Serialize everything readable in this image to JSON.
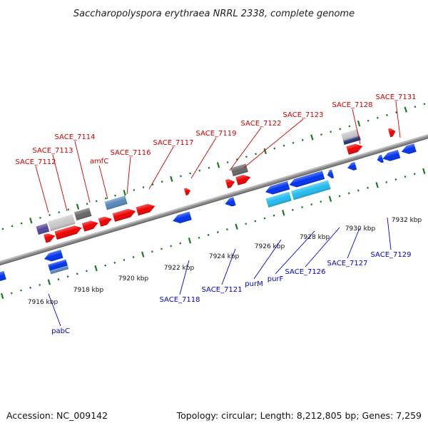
{
  "title": "Saccharopolyspora erythraea NRRL 2338, complete genome",
  "footer": {
    "accession": "Accession: NC_009142",
    "summary": "Topology: circular; Length: 8,212,805 bp; Genes: 7,259"
  },
  "colors": {
    "backbone": "#8c8c8c",
    "tick": "#1e7a1e",
    "forward_label": "#cc0000",
    "reverse_label": "#0000cc",
    "red": "#ee0000",
    "blue": "#0033ee",
    "cyan": "#22bbee",
    "steel": "#5588bb",
    "grey": "#666666",
    "lightgrey": "#c8c8c8",
    "navy": "#223377",
    "purple": "#554499"
  },
  "scale_labels": [
    "7916 kbp",
    "7918 kbp",
    "7920 kbp",
    "7922 kbp",
    "7924 kbp",
    "7926 kbp",
    "7928 kbp",
    "7930 kbp",
    "7932 kbp"
  ],
  "forward_labels": [
    "SACE_7112",
    "SACE_7113",
    "SACE_7114",
    "amfC",
    "SACE_7116",
    "SACE_7117",
    "SACE_7119",
    "SACE_7122",
    "SACE_7123",
    "SACE_7128",
    "SACE_7131"
  ],
  "reverse_labels": [
    "pabC",
    "SACE_7118",
    "SACE_7121",
    "purM",
    "purF",
    "SACE_7126",
    "SACE_7127",
    "SACE_7129"
  ]
}
